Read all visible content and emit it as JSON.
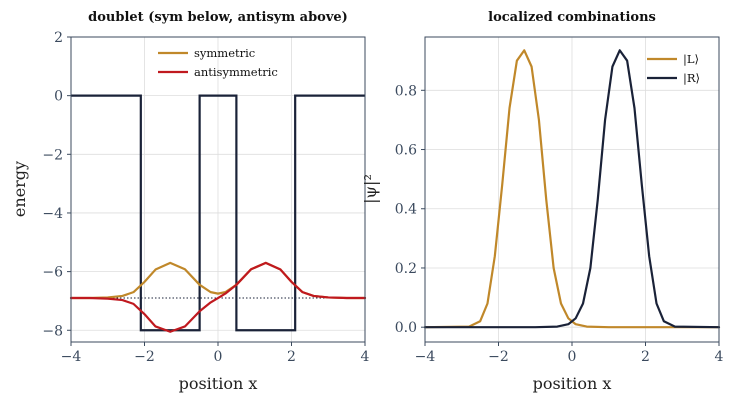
{
  "chart_data": [
    {
      "type": "line",
      "title": "doublet (sym below, antisym above)",
      "xlabel": "position x",
      "ylabel": "energy",
      "xlim": [
        -4,
        4
      ],
      "ylim": [
        -8.4,
        2
      ],
      "xticks": [
        -4,
        -2,
        0,
        2,
        4
      ],
      "yticks": [
        2,
        0,
        -2,
        -4,
        -6,
        -8
      ],
      "xtick_labels": [
        "−4",
        "−2",
        "0",
        "2",
        "4"
      ],
      "ytick_labels": [
        "2",
        "0",
        "−2",
        "−4",
        "−6",
        "−8"
      ],
      "grid": true,
      "legend": "top-center",
      "reference_level": -6.9,
      "potential": {
        "color": "#1a2238",
        "x": [
          -4,
          -2.1,
          -2.1,
          -0.5,
          -0.5,
          0.5,
          0.5,
          2.1,
          2.1,
          4
        ],
        "y": [
          0,
          0,
          -8,
          -8,
          0,
          0,
          -8,
          -8,
          0,
          0
        ]
      },
      "series": [
        {
          "name": "symmetric",
          "color": "#c0882a",
          "x": [
            -4,
            -3.5,
            -3,
            -2.6,
            -2.3,
            -2,
            -1.7,
            -1.3,
            -0.9,
            -0.5,
            -0.2,
            0,
            0.2,
            0.5,
            0.9,
            1.3,
            1.7,
            2,
            2.3,
            2.6,
            3,
            3.5,
            4
          ],
          "y": [
            -6.9,
            -6.9,
            -6.88,
            -6.83,
            -6.7,
            -6.35,
            -5.93,
            -5.7,
            -5.92,
            -6.45,
            -6.7,
            -6.75,
            -6.7,
            -6.45,
            -5.92,
            -5.7,
            -5.93,
            -6.35,
            -6.7,
            -6.83,
            -6.88,
            -6.9,
            -6.9
          ]
        },
        {
          "name": "antisymmetric",
          "color": "#c0191f",
          "x": [
            -4,
            -3.5,
            -3,
            -2.6,
            -2.3,
            -2,
            -1.7,
            -1.3,
            -0.9,
            -0.5,
            -0.2,
            0,
            0.2,
            0.5,
            0.9,
            1.3,
            1.7,
            2,
            2.3,
            2.6,
            3,
            3.5,
            4
          ],
          "y": [
            -6.9,
            -6.9,
            -6.92,
            -6.97,
            -7.1,
            -7.45,
            -7.87,
            -8.05,
            -7.87,
            -7.35,
            -7.05,
            -6.9,
            -6.75,
            -6.45,
            -5.92,
            -5.7,
            -5.93,
            -6.35,
            -6.7,
            -6.83,
            -6.88,
            -6.9,
            -6.9
          ]
        }
      ]
    },
    {
      "type": "line",
      "title": "localized combinations",
      "xlabel": "position x",
      "ylabel": "|ψ|²",
      "xlim": [
        -4,
        4
      ],
      "ylim": [
        -0.05,
        0.98
      ],
      "xticks": [
        -4,
        -2,
        0,
        2,
        4
      ],
      "yticks": [
        0,
        0.2,
        0.4,
        0.6,
        0.8
      ],
      "xtick_labels": [
        "−4",
        "−2",
        "0",
        "2",
        "4"
      ],
      "ytick_labels": [
        "0.0",
        "0.2",
        "0.4",
        "0.6",
        "0.8"
      ],
      "grid": true,
      "legend": "top-right",
      "series": [
        {
          "name": "|L⟩",
          "color": "#c0882a",
          "x": [
            -4,
            -2.8,
            -2.5,
            -2.3,
            -2.1,
            -1.9,
            -1.7,
            -1.5,
            -1.3,
            -1.1,
            -0.9,
            -0.7,
            -0.5,
            -0.3,
            -0.1,
            0.1,
            0.4,
            1,
            4
          ],
          "y": [
            0,
            0.002,
            0.02,
            0.08,
            0.24,
            0.48,
            0.74,
            0.9,
            0.935,
            0.88,
            0.7,
            0.43,
            0.2,
            0.08,
            0.03,
            0.01,
            0.002,
            0,
            0
          ]
        },
        {
          "name": "|R⟩",
          "color": "#1a2238",
          "x": [
            -4,
            -1,
            -0.4,
            -0.1,
            0.1,
            0.3,
            0.5,
            0.7,
            0.9,
            1.1,
            1.3,
            1.5,
            1.7,
            1.9,
            2.1,
            2.3,
            2.5,
            2.8,
            4
          ],
          "y": [
            0,
            0,
            0.002,
            0.01,
            0.03,
            0.08,
            0.2,
            0.43,
            0.7,
            0.88,
            0.935,
            0.9,
            0.74,
            0.48,
            0.24,
            0.08,
            0.02,
            0.002,
            0
          ]
        }
      ]
    }
  ]
}
